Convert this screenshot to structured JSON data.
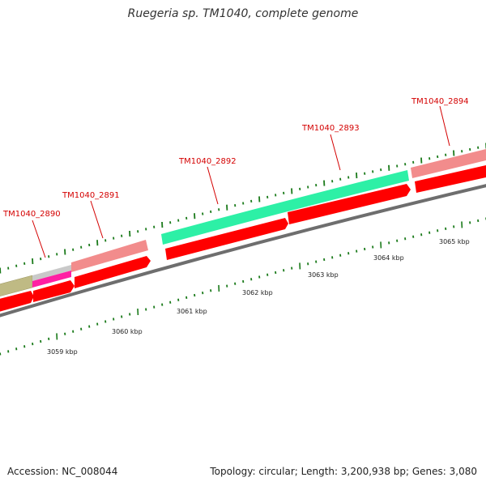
{
  "title": "Ruegeria sp. TM1040, complete genome",
  "footer": {
    "accession": "Accession: NC_008044",
    "summary": "Topology: circular; Length: 3,200,938 bp; Genes: 3,080"
  },
  "colors": {
    "cds_forward": "#ff0000",
    "cds_label_highlight": "#f08a8a",
    "rRNA_green": "#22f2a0",
    "tRNA_magenta": "#ff1aa0",
    "olive": "#c0bb85",
    "grey_feature": "#c8c8c8",
    "backbone": "#888888",
    "ticks": "#1a7a1a",
    "label_text": "#d40000"
  },
  "gene_labels": [
    "TM1040_2890",
    "TM1040_2891",
    "TM1040_2892",
    "TM1040_2893",
    "TM1040_2894"
  ],
  "kbp_labels": [
    "3059 kbp",
    "3060 kbp",
    "3061 kbp",
    "3062 kbp",
    "3063 kbp",
    "3064 kbp",
    "3065 kbp"
  ]
}
